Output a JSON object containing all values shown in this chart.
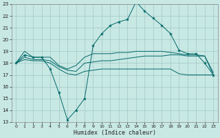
{
  "background_color": "#c8e8e4",
  "grid_color": "#a0c8c4",
  "line_color": "#006868",
  "xlim": [
    -0.5,
    23.5
  ],
  "ylim": [
    13,
    23
  ],
  "xlabel": "Humidex (Indice chaleur)",
  "xticks": [
    0,
    1,
    2,
    3,
    4,
    5,
    6,
    7,
    8,
    9,
    10,
    11,
    12,
    13,
    14,
    15,
    16,
    17,
    18,
    19,
    20,
    21,
    22,
    23
  ],
  "yticks": [
    13,
    14,
    15,
    16,
    17,
    18,
    19,
    20,
    21,
    22,
    23
  ],
  "line_main_x": [
    0,
    1,
    2,
    3,
    4,
    5,
    6,
    7,
    8,
    9,
    10,
    11,
    12,
    13,
    14,
    15,
    16,
    17,
    18,
    19,
    20,
    21,
    22,
    23
  ],
  "line_main_y": [
    18.0,
    18.7,
    18.5,
    18.5,
    17.5,
    15.5,
    13.2,
    14.0,
    15.0,
    19.5,
    20.5,
    21.2,
    21.5,
    21.7,
    23.2,
    22.4,
    21.8,
    21.2,
    20.5,
    19.1,
    18.8,
    18.8,
    18.0,
    17.0
  ],
  "line_upper_x": [
    0,
    1,
    2,
    3,
    4,
    5,
    6,
    7,
    8,
    9,
    10,
    11,
    12,
    13,
    14,
    15,
    16,
    17,
    18,
    19,
    20,
    21,
    22,
    23
  ],
  "line_upper_y": [
    18.0,
    19.0,
    18.5,
    18.5,
    18.5,
    17.8,
    17.5,
    17.8,
    18.5,
    18.8,
    18.8,
    18.8,
    18.9,
    18.9,
    19.0,
    19.0,
    19.0,
    19.0,
    18.9,
    18.8,
    18.7,
    18.7,
    18.6,
    17.2
  ],
  "line_mid_x": [
    0,
    1,
    2,
    3,
    4,
    5,
    6,
    7,
    8,
    9,
    10,
    11,
    12,
    13,
    14,
    15,
    16,
    17,
    18,
    19,
    20,
    21,
    22,
    23
  ],
  "line_mid_y": [
    18.0,
    18.5,
    18.3,
    18.3,
    18.2,
    17.7,
    17.4,
    17.3,
    18.0,
    18.1,
    18.2,
    18.2,
    18.3,
    18.4,
    18.5,
    18.6,
    18.6,
    18.6,
    18.7,
    18.7,
    18.6,
    18.6,
    18.6,
    17.0
  ],
  "line_low_x": [
    0,
    1,
    2,
    3,
    4,
    5,
    6,
    7,
    8,
    9,
    10,
    11,
    12,
    13,
    14,
    15,
    16,
    17,
    18,
    19,
    20,
    21,
    22,
    23
  ],
  "line_low_y": [
    18.0,
    18.3,
    18.2,
    18.2,
    18.0,
    17.5,
    17.1,
    17.0,
    17.3,
    17.4,
    17.5,
    17.5,
    17.5,
    17.5,
    17.5,
    17.5,
    17.5,
    17.5,
    17.5,
    17.1,
    17.0,
    17.0,
    17.0,
    17.0
  ]
}
